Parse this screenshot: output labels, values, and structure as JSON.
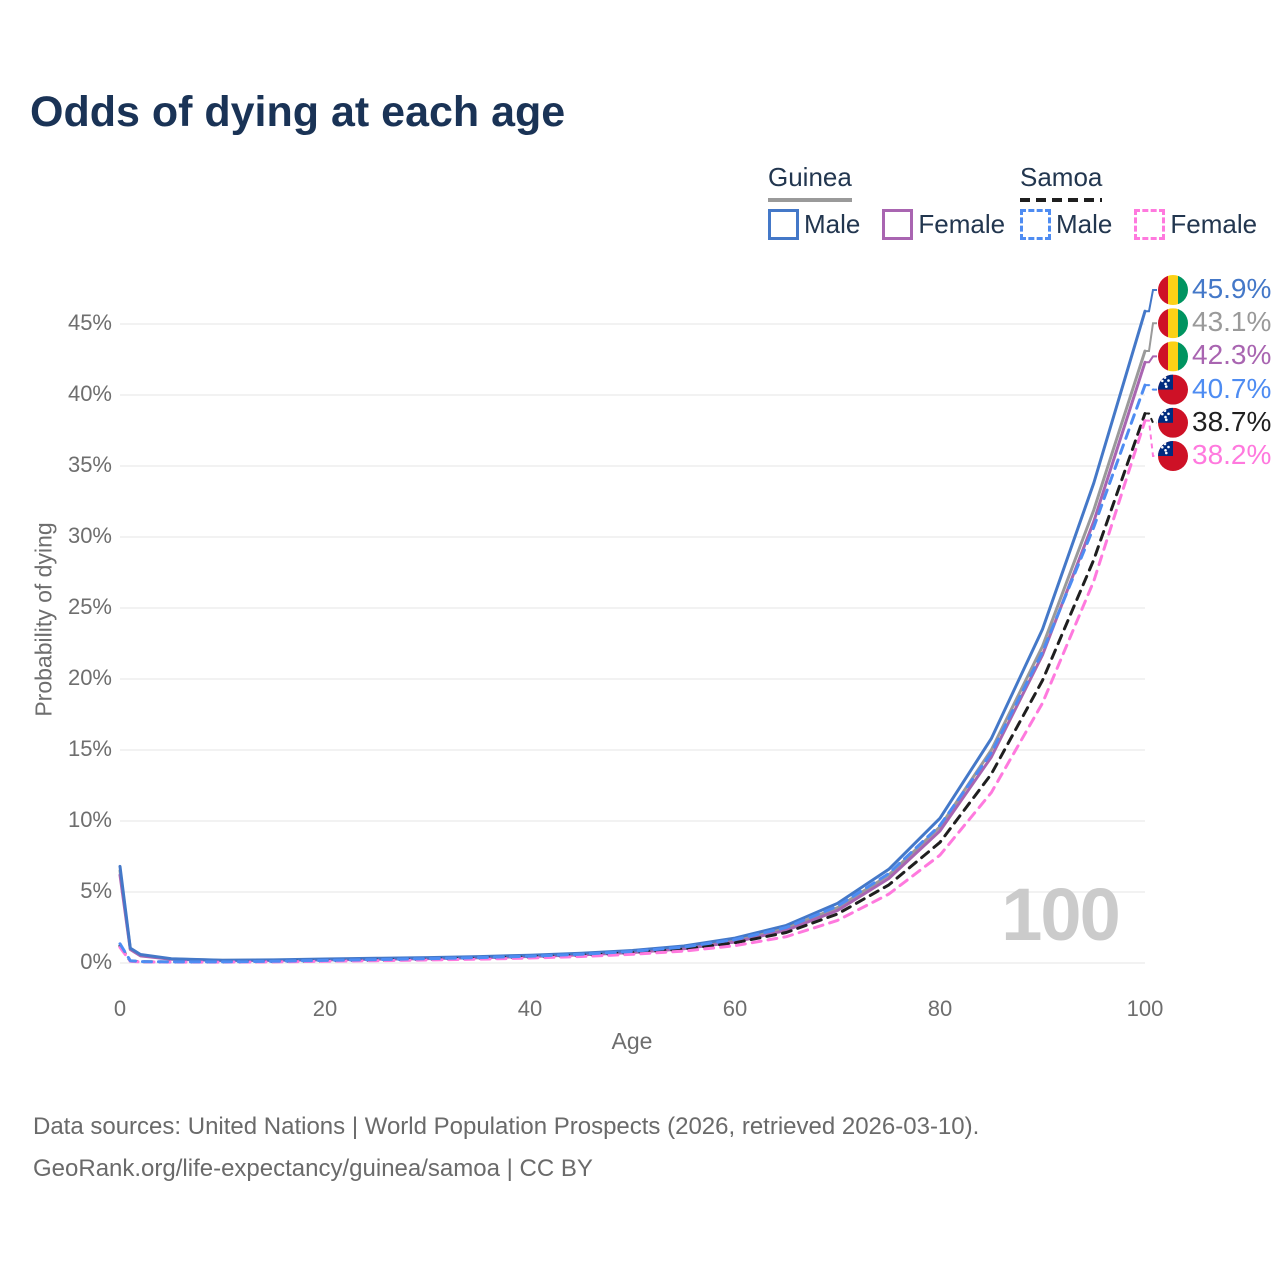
{
  "title": "Odds of dying at each age",
  "legend": {
    "groups": [
      {
        "name": "Guinea",
        "line_style": "solid",
        "underline_color": "#9a9a9a",
        "items": [
          {
            "label": "Male",
            "color": "#4478c8",
            "dashed": false
          },
          {
            "label": "Female",
            "color": "#a965b1",
            "dashed": false
          }
        ]
      },
      {
        "name": "Samoa",
        "line_style": "dashed",
        "underline_color": "#1f1f1f",
        "items": [
          {
            "label": "Male",
            "color": "#4e8cf2",
            "dashed": true
          },
          {
            "label": "Female",
            "color": "#ff79de",
            "dashed": true
          }
        ]
      }
    ]
  },
  "chart_data": {
    "type": "line",
    "title": "Odds of dying at each age",
    "xlabel": "Age",
    "ylabel": "Probability of dying",
    "xlim": [
      0,
      100
    ],
    "ylim": [
      0,
      47.5
    ],
    "grid": "horizontal-only",
    "legend_position": "top-right",
    "watermark": "100",
    "x_ticks": [
      {
        "v": 0,
        "label": "0"
      },
      {
        "v": 20,
        "label": "20"
      },
      {
        "v": 40,
        "label": "40"
      },
      {
        "v": 60,
        "label": "60"
      },
      {
        "v": 80,
        "label": "80"
      },
      {
        "v": 100,
        "label": "100"
      }
    ],
    "y_ticks": [
      {
        "v": 0,
        "label": "0%"
      },
      {
        "v": 5,
        "label": "5%"
      },
      {
        "v": 10,
        "label": "10%"
      },
      {
        "v": 15,
        "label": "15%"
      },
      {
        "v": 20,
        "label": "20%"
      },
      {
        "v": 25,
        "label": "25%"
      },
      {
        "v": 30,
        "label": "30%"
      },
      {
        "v": 35,
        "label": "35%"
      },
      {
        "v": 40,
        "label": "40%"
      },
      {
        "v": 45,
        "label": "45%"
      }
    ],
    "ages": [
      0,
      1,
      2,
      5,
      10,
      15,
      20,
      25,
      30,
      35,
      40,
      45,
      50,
      55,
      60,
      65,
      70,
      75,
      80,
      85,
      90,
      95,
      100
    ],
    "series": [
      {
        "id": "guinea-male",
        "name": "Guinea Male",
        "country": "guinea",
        "color": "#4478c8",
        "dashed": false,
        "end_label": "45.9%",
        "values": [
          6.8,
          1.05,
          0.6,
          0.3,
          0.2,
          0.22,
          0.28,
          0.33,
          0.38,
          0.45,
          0.55,
          0.68,
          0.88,
          1.2,
          1.75,
          2.65,
          4.2,
          6.6,
          10.2,
          15.8,
          23.5,
          33.8,
          45.9
        ]
      },
      {
        "id": "guinea-both",
        "name": "Guinea",
        "country": "guinea",
        "color": "#9a9a9a",
        "dashed": false,
        "end_label": "43.1%",
        "values": [
          6.5,
          1.0,
          0.55,
          0.28,
          0.18,
          0.2,
          0.25,
          0.3,
          0.35,
          0.41,
          0.5,
          0.62,
          0.8,
          1.08,
          1.6,
          2.45,
          3.9,
          6.2,
          9.6,
          15.0,
          22.3,
          31.9,
          43.1
        ]
      },
      {
        "id": "guinea-female",
        "name": "Guinea Female",
        "country": "guinea",
        "color": "#a965b1",
        "dashed": false,
        "end_label": "42.3%",
        "values": [
          6.2,
          0.95,
          0.5,
          0.26,
          0.17,
          0.18,
          0.22,
          0.27,
          0.31,
          0.37,
          0.46,
          0.57,
          0.74,
          1.0,
          1.48,
          2.3,
          3.7,
          5.95,
          9.3,
          14.5,
          21.7,
          31.1,
          42.3
        ]
      },
      {
        "id": "samoa-male",
        "name": "Samoa Male",
        "country": "samoa",
        "color": "#4e8cf2",
        "dashed": true,
        "end_label": "40.7%",
        "values": [
          1.35,
          0.16,
          0.1,
          0.08,
          0.08,
          0.12,
          0.18,
          0.24,
          0.3,
          0.38,
          0.48,
          0.62,
          0.82,
          1.12,
          1.65,
          2.5,
          4.0,
          6.3,
          9.7,
          14.8,
          21.9,
          30.7,
          40.7
        ]
      },
      {
        "id": "samoa-both",
        "name": "Samoa",
        "country": "samoa",
        "color": "#1f1f1f",
        "dashed": true,
        "end_label": "38.7%",
        "values": [
          1.2,
          0.14,
          0.09,
          0.07,
          0.07,
          0.1,
          0.15,
          0.2,
          0.26,
          0.33,
          0.42,
          0.54,
          0.72,
          0.98,
          1.42,
          2.15,
          3.45,
          5.5,
          8.5,
          13.3,
          19.9,
          28.4,
          38.7
        ]
      },
      {
        "id": "samoa-female",
        "name": "Samoa Female",
        "country": "samoa",
        "color": "#ff79de",
        "dashed": true,
        "end_label": "38.2%",
        "values": [
          1.1,
          0.12,
          0.08,
          0.06,
          0.06,
          0.08,
          0.12,
          0.16,
          0.21,
          0.27,
          0.35,
          0.46,
          0.61,
          0.84,
          1.22,
          1.85,
          3.0,
          4.85,
          7.6,
          12.0,
          18.3,
          26.9,
          38.2
        ]
      }
    ],
    "flag_colors": {
      "guinea": {
        "red": "#CE1126",
        "yellow": "#FCD116",
        "green": "#009460"
      },
      "samoa": {
        "red": "#CE1126",
        "blue": "#002B7F",
        "stars": "#ffffff"
      }
    },
    "gridline_color": "#ededed"
  },
  "footer": {
    "line1": "Data sources: United Nations | World Population Prospects (2026, retrieved 2026-03-10).",
    "line2": "GeoRank.org/life-expectancy/guinea/samoa | CC BY"
  }
}
